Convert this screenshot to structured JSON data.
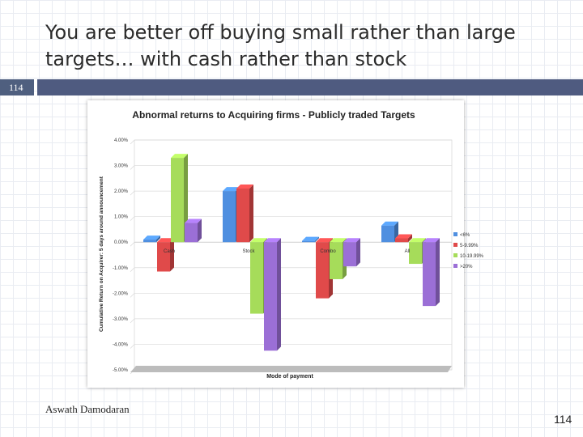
{
  "slide": {
    "title_line1": "You are better off buying small rather than large",
    "title_line2": "targets… with cash rather than stock",
    "slide_number_badge": "114",
    "author": "Aswath Damodaran",
    "page_number": "114"
  },
  "colors": {
    "header_bar": "#4f5b80",
    "badge": "#4f5f7f"
  },
  "chart_data": {
    "type": "bar",
    "title": "Abnormal returns to Acquiring firms - Publicly traded Targets",
    "ylabel": "Cumulative Return on Acquirer: 5 days around announcement",
    "xlabel": "Mode of payment",
    "ylim": [
      -5,
      4
    ],
    "yticks": [
      "4.00%",
      "3.00%",
      "2.00%",
      "1.00%",
      "0.00%",
      "-1.00%",
      "-2.00%",
      "-3.00%",
      "-4.00%",
      "-5.00%"
    ],
    "categories": [
      "Cash",
      "Stock",
      "Combo",
      "All"
    ],
    "legend_position": "right",
    "series": [
      {
        "name": "<6%",
        "color": "#4f8fe0",
        "values": [
          0.1,
          2.0,
          0.05,
          0.65
        ]
      },
      {
        "name": "5-9.99%",
        "color": "#e04a4a",
        "values": [
          -1.15,
          2.1,
          -2.2,
          0.15
        ]
      },
      {
        "name": "10-19.99%",
        "color": "#a6dc5a",
        "values": [
          3.3,
          -2.8,
          -1.45,
          -0.85
        ]
      },
      {
        "name": ">20%",
        "color": "#9b6fd6",
        "values": [
          0.75,
          -4.25,
          -0.95,
          -2.5
        ]
      }
    ]
  }
}
